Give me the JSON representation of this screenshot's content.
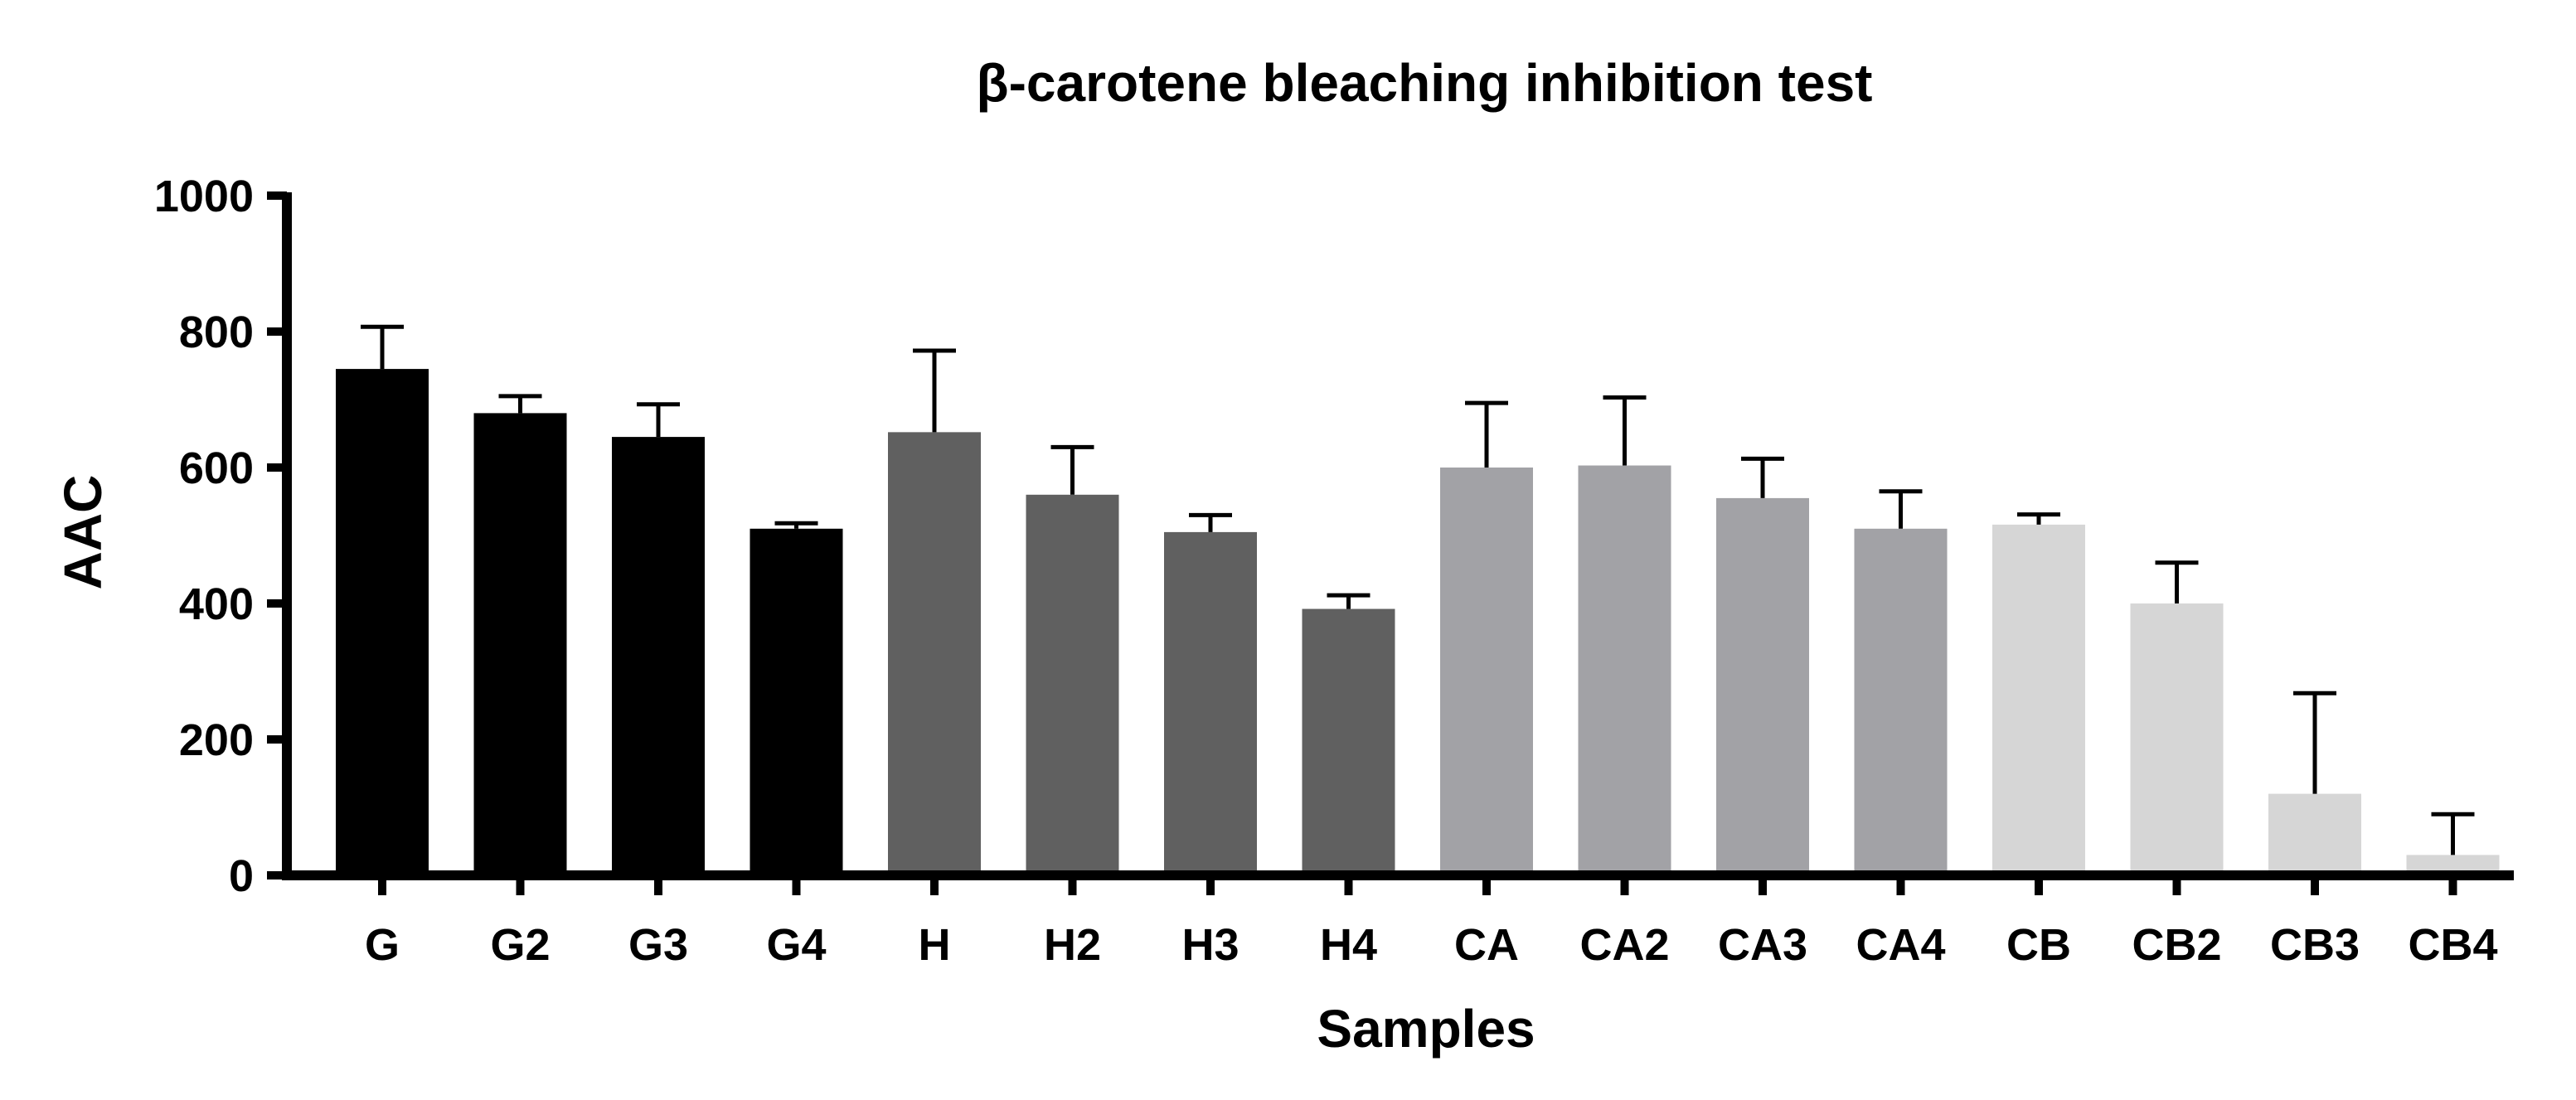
{
  "chart_data": {
    "type": "bar",
    "title": "β-carotene bleaching inhibition test",
    "xlabel": "Samples",
    "ylabel": "AAC",
    "ylim": [
      0,
      1000
    ],
    "yticks": [
      0,
      200,
      400,
      600,
      800,
      1000
    ],
    "grid": false,
    "legend": "none",
    "categories": [
      "G",
      "G2",
      "G3",
      "G4",
      "H",
      "H2",
      "H3",
      "H4",
      "CA",
      "CA2",
      "CA3",
      "CA4",
      "CB",
      "CB2",
      "CB3",
      "CB4"
    ],
    "values": [
      745,
      680,
      645,
      510,
      652,
      560,
      505,
      392,
      600,
      603,
      555,
      510,
      516,
      400,
      120,
      30
    ],
    "errors": [
      62,
      25,
      48,
      8,
      120,
      70,
      25,
      20,
      95,
      100,
      58,
      55,
      15,
      60,
      148,
      60
    ],
    "group_colors": [
      "#000000",
      "#000000",
      "#000000",
      "#000000",
      "#606060",
      "#606060",
      "#606060",
      "#606060",
      "#a2a2a6",
      "#a2a2a6",
      "#a2a2a6",
      "#a2a2a6",
      "#d6d6d6",
      "#d6d6d6",
      "#d6d6d6",
      "#d6d6d6"
    ]
  }
}
